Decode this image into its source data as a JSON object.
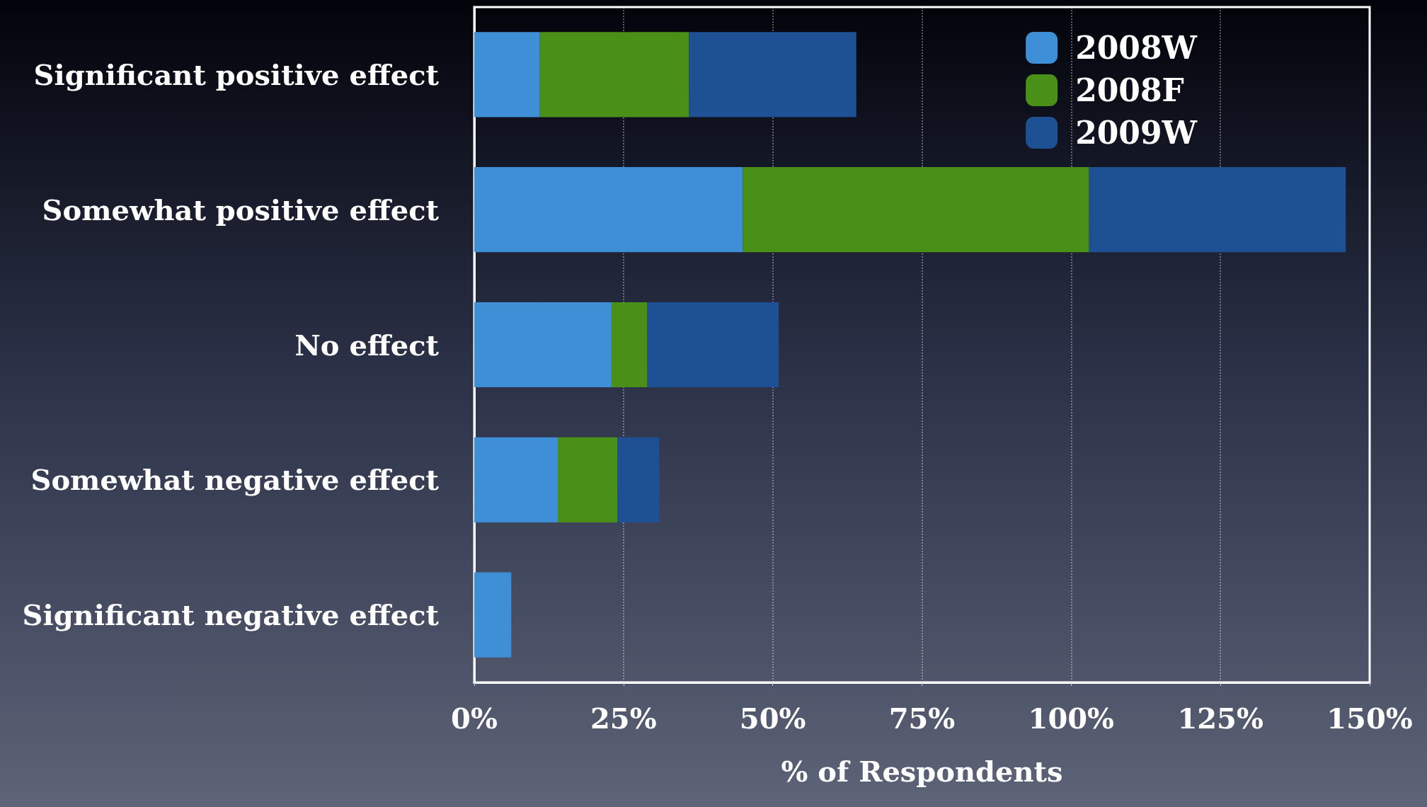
{
  "chart_data": {
    "type": "bar",
    "orientation": "horizontal",
    "stacked": true,
    "xlabel": "% of Respondents",
    "categories": [
      "Significant positive effect",
      "Somewhat positive effect",
      "No effect",
      "Somewhat negative effect",
      "Significant negative effect"
    ],
    "series": [
      {
        "name": "2008W",
        "color": "#3f8fd6",
        "values": [
          11,
          45,
          23,
          14,
          6.2
        ]
      },
      {
        "name": "2008F",
        "color": "#4a8f18",
        "values": [
          25,
          58,
          6,
          10,
          0
        ]
      },
      {
        "name": "2009W",
        "color": "#1e5194",
        "values": [
          28,
          43,
          22,
          7,
          0
        ]
      }
    ],
    "xlim": [
      0,
      150
    ],
    "xticks": [
      {
        "value": 0,
        "label": "0%"
      },
      {
        "value": 25,
        "label": "25%"
      },
      {
        "value": 50,
        "label": "50%"
      },
      {
        "value": 75,
        "label": "75%"
      },
      {
        "value": 100,
        "label": "100%"
      },
      {
        "value": 125,
        "label": "125%"
      },
      {
        "value": 150,
        "label": "150%"
      }
    ],
    "grid": "x",
    "legend": "top right"
  }
}
